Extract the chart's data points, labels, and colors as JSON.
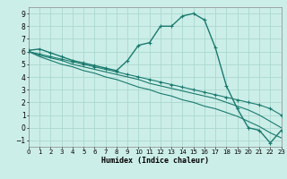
{
  "xlabel": "Humidex (Indice chaleur)",
  "background_color": "#cceee8",
  "grid_color": "#aad8d0",
  "line_color": "#1a7a6e",
  "xlim": [
    0,
    23
  ],
  "ylim": [
    -1.5,
    9.5
  ],
  "xticks": [
    0,
    1,
    2,
    3,
    4,
    5,
    6,
    7,
    8,
    9,
    10,
    11,
    12,
    13,
    14,
    15,
    16,
    17,
    18,
    19,
    20,
    21,
    22,
    23
  ],
  "yticks": [
    -1,
    0,
    1,
    2,
    3,
    4,
    5,
    6,
    7,
    8,
    9
  ],
  "series": [
    {
      "x": [
        0,
        1,
        2,
        3,
        4,
        5,
        6,
        7,
        8,
        9,
        10,
        11,
        12,
        13,
        14,
        15,
        16,
        17,
        18,
        19,
        20,
        21,
        22,
        23
      ],
      "y": [
        6.1,
        6.2,
        5.9,
        5.6,
        5.3,
        5.1,
        4.9,
        4.7,
        4.5,
        5.3,
        6.5,
        6.7,
        8.0,
        8.0,
        8.8,
        9.0,
        8.5,
        6.3,
        3.3,
        1.5,
        0.0,
        -0.2,
        -1.2,
        -0.2
      ],
      "marker": true,
      "linewidth": 1.0
    },
    {
      "x": [
        0,
        1,
        2,
        3,
        4,
        5,
        6,
        7,
        8,
        9,
        10,
        11,
        12,
        13,
        14,
        15,
        16,
        17,
        18,
        19,
        20,
        21,
        22,
        23
      ],
      "y": [
        6.0,
        5.8,
        5.6,
        5.4,
        5.2,
        5.0,
        4.8,
        4.6,
        4.4,
        4.2,
        4.0,
        3.8,
        3.6,
        3.4,
        3.2,
        3.0,
        2.8,
        2.6,
        2.4,
        2.2,
        2.0,
        1.8,
        1.5,
        1.0
      ],
      "marker": true,
      "linewidth": 0.8
    },
    {
      "x": [
        0,
        1,
        2,
        3,
        4,
        5,
        6,
        7,
        8,
        9,
        10,
        11,
        12,
        13,
        14,
        15,
        16,
        17,
        18,
        19,
        20,
        21,
        22,
        23
      ],
      "y": [
        6.0,
        5.7,
        5.5,
        5.3,
        5.0,
        4.8,
        4.6,
        4.4,
        4.2,
        4.0,
        3.8,
        3.5,
        3.3,
        3.1,
        2.9,
        2.7,
        2.5,
        2.3,
        2.0,
        1.7,
        1.4,
        1.0,
        0.5,
        0.0
      ],
      "marker": false,
      "linewidth": 0.8
    },
    {
      "x": [
        0,
        1,
        2,
        3,
        4,
        5,
        6,
        7,
        8,
        9,
        10,
        11,
        12,
        13,
        14,
        15,
        16,
        17,
        18,
        19,
        20,
        21,
        22,
        23
      ],
      "y": [
        6.0,
        5.6,
        5.3,
        5.0,
        4.8,
        4.5,
        4.3,
        4.0,
        3.8,
        3.5,
        3.2,
        3.0,
        2.7,
        2.5,
        2.2,
        2.0,
        1.7,
        1.5,
        1.2,
        0.9,
        0.5,
        0.1,
        -0.4,
        -0.8
      ],
      "marker": false,
      "linewidth": 0.8
    }
  ]
}
